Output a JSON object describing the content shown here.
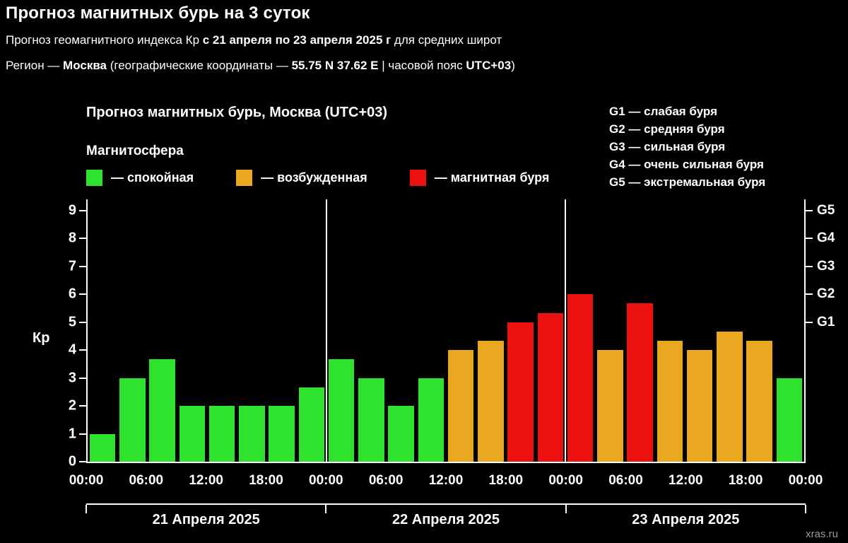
{
  "page": {
    "title": "Прогноз магнитных бурь на 3 суток",
    "subtitle1": {
      "t1": "Прогноз геомагнитного индекса Кр ",
      "b1": "с 21 апреля по 23 апреля 2025 г",
      "t2": " для средних широт"
    },
    "subtitle2": {
      "t1": "Регион — ",
      "b1": "Москва",
      "t2": " (географические координаты — ",
      "b2": "55.75 N 37.62 E",
      "t3": " | часовой пояс ",
      "b3": "UTC+03",
      "t4": ")"
    },
    "watermark": "xras.ru"
  },
  "chart": {
    "title": "Прогноз магнитных бурь, Москва (UTC+03)",
    "legend_title": "Магнитосфера",
    "legend_items": [
      "— спокойная",
      "— возбужденная",
      "— магнитная буря"
    ],
    "g_legend": [
      "G1 — слабая буря",
      "G2 — средняя буря",
      "G3 — сильная буря",
      "G4 — очень сильная буря",
      "G5 — экстремальная буря"
    ],
    "y_axis_label": "Кр"
  },
  "chart_data": {
    "type": "bar",
    "title": "Прогноз магнитных бурь, Москва (UTC+03)",
    "ylabel": "Кр",
    "ylim": [
      0,
      9.4
    ],
    "y_ticks": [
      0,
      1,
      2,
      3,
      4,
      5,
      6,
      7,
      8,
      9
    ],
    "right_ticks": [
      {
        "value": 5,
        "label": "G1"
      },
      {
        "value": 6,
        "label": "G2"
      },
      {
        "value": 7,
        "label": "G3"
      },
      {
        "value": 8,
        "label": "G4"
      },
      {
        "value": 9,
        "label": "G5"
      }
    ],
    "hours_per_bar": 3,
    "values": [
      1,
      3,
      3.67,
      2,
      2,
      2,
      2,
      2.67,
      3.67,
      3,
      2,
      3,
      4,
      4.33,
      5,
      5.33,
      6,
      4,
      5.67,
      4.33,
      4,
      4.67,
      4.33,
      3
    ],
    "x_tick_labels": [
      "00:00",
      "06:00",
      "12:00",
      "18:00",
      "00:00",
      "06:00",
      "12:00",
      "18:00",
      "00:00",
      "06:00",
      "12:00",
      "18:00",
      "00:00"
    ],
    "day_labels": [
      "21 Апреля 2025",
      "22 Апреля 2025",
      "23 Апреля 2025"
    ],
    "day_boundaries": [
      8,
      16
    ],
    "thresholds": {
      "active": 4,
      "storm": 5
    },
    "colors": {
      "quiet": "#2ee22e",
      "active": "#eaa820",
      "storm": "#ee1111"
    },
    "grid": "vertical-day-separators",
    "legend_position": "top"
  }
}
